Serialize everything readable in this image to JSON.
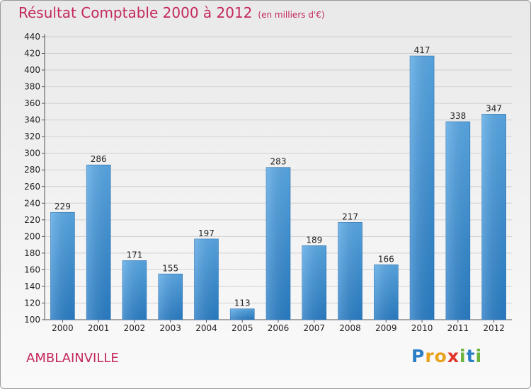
{
  "header": {
    "title": "Résultat Comptable 2000 à 2012",
    "subtitle": "(en milliers d'€)"
  },
  "footer": {
    "city": "AMBLAINVILLE",
    "brand": "Proxiti"
  },
  "colors": {
    "bar_light": "#5aa9e6",
    "bar_dark": "#2a7ec6",
    "title": "#c4285b",
    "grid": "#d0d0d0"
  },
  "chart_data": {
    "type": "bar",
    "title": "Résultat Comptable 2000 à 2012",
    "subtitle": "(en milliers d'€)",
    "categories": [
      "2000",
      "2001",
      "2002",
      "2003",
      "2004",
      "2005",
      "2006",
      "2007",
      "2008",
      "2009",
      "2010",
      "2011",
      "2012"
    ],
    "values": [
      229,
      286,
      171,
      155,
      197,
      113,
      283,
      189,
      217,
      166,
      417,
      338,
      347
    ],
    "ylim": [
      100,
      440
    ],
    "yticks": [
      100,
      120,
      140,
      160,
      180,
      200,
      220,
      240,
      260,
      280,
      300,
      320,
      340,
      360,
      380,
      400,
      420,
      440
    ],
    "grid": true,
    "data_labels": true
  }
}
